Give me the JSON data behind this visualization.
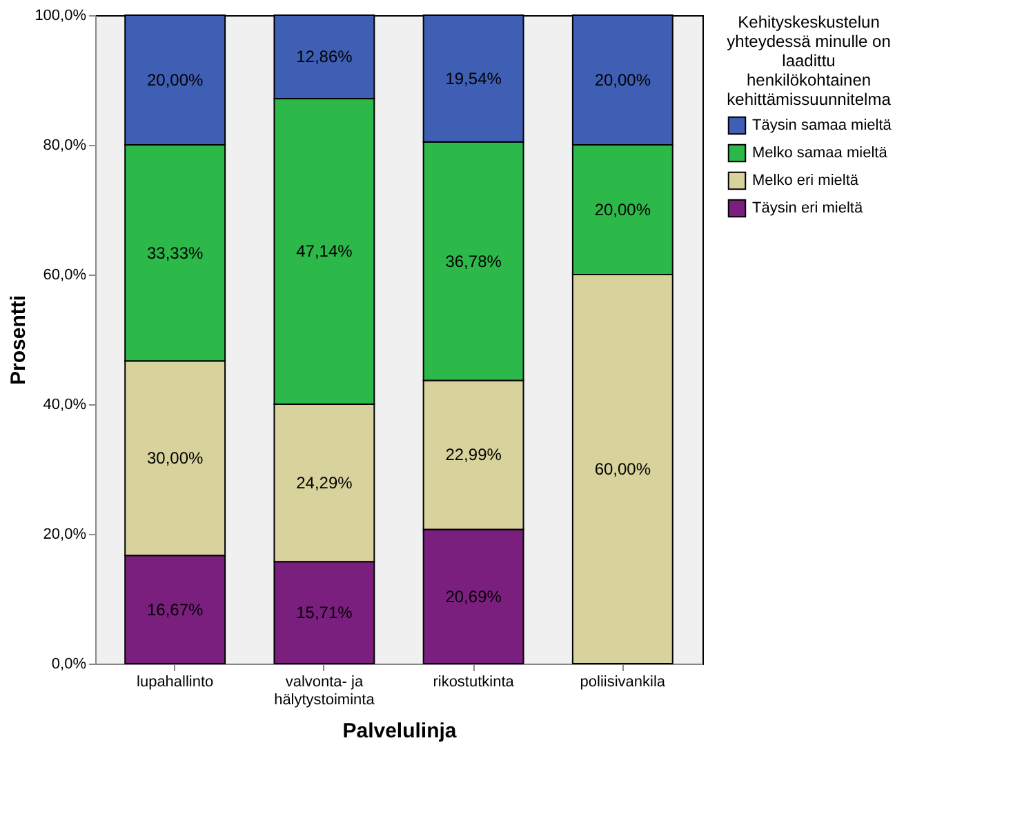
{
  "chart_data": {
    "type": "bar",
    "stacked": true,
    "xlabel": "Palvelulinja",
    "ylabel": "Prosentti",
    "legend_title": "Kehityskeskustelun yhteydessä minulle on laadittu henkilökohtainen kehittämissuunnitelma",
    "legend": "top right",
    "categories": [
      "lupahallinto",
      "valvonta- ja hälytystoiminta",
      "rikostutkinta",
      "poliisivankila"
    ],
    "ylim": [
      0,
      100
    ],
    "yticks": [
      {
        "value": 0,
        "label": "0,0%"
      },
      {
        "value": 20,
        "label": "20,0%"
      },
      {
        "value": 40,
        "label": "40,0%"
      },
      {
        "value": 60,
        "label": "60,0%"
      },
      {
        "value": 80,
        "label": "80,0%"
      },
      {
        "value": 100,
        "label": "100,0%"
      }
    ],
    "series": [
      {
        "name": "Täysin eri mieltä",
        "color": "#7b1f7e",
        "values": [
          16.67,
          15.71,
          20.69,
          null
        ],
        "value_labels": [
          "16,67%",
          "15,71%",
          "20,69%",
          null
        ]
      },
      {
        "name": "Melko eri mieltä",
        "color": "#d8d39c",
        "values": [
          30.0,
          24.29,
          22.99,
          60.0
        ],
        "value_labels": [
          "30,00%",
          "24,29%",
          "22,99%",
          "60,00%"
        ]
      },
      {
        "name": "Melko samaa mieltä",
        "color": "#2db84a",
        "values": [
          33.33,
          47.14,
          36.78,
          20.0
        ],
        "value_labels": [
          "33,33%",
          "47,14%",
          "36,78%",
          "20,00%"
        ]
      },
      {
        "name": "Täysin samaa mieltä",
        "color": "#3f5fb4",
        "values": [
          20.0,
          12.86,
          19.54,
          20.0
        ],
        "value_labels": [
          "20,00%",
          "12,86%",
          "19,54%",
          "20,00%"
        ]
      }
    ]
  }
}
